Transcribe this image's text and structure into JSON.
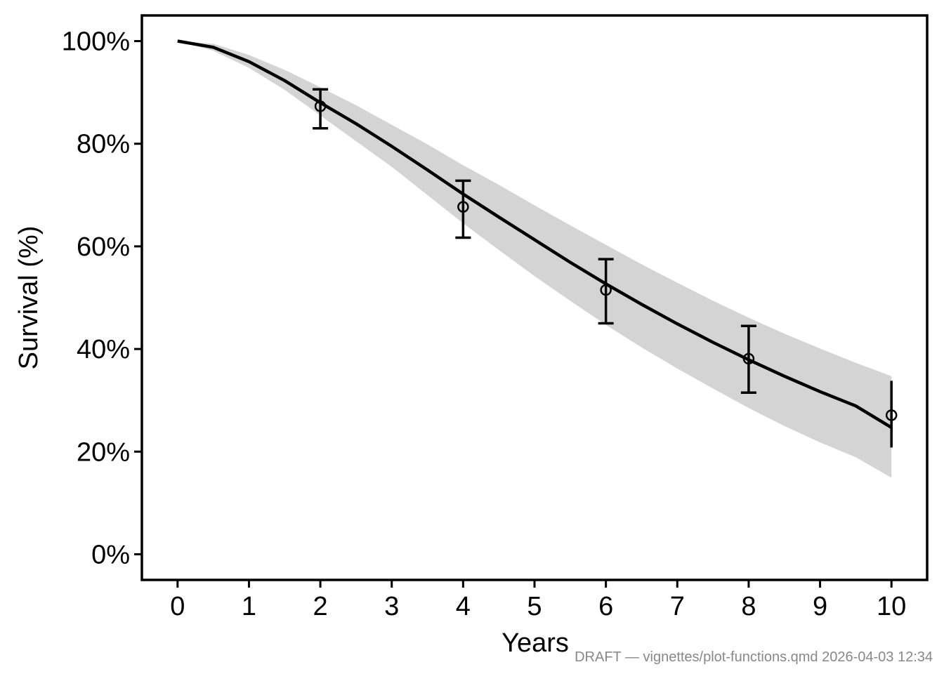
{
  "chart_data": {
    "type": "line",
    "xlabel": "Years",
    "ylabel": "Survival (%)",
    "xlim": [
      -0.5,
      10.5
    ],
    "ylim": [
      -5,
      105
    ],
    "x_ticks": [
      0,
      1,
      2,
      3,
      4,
      5,
      6,
      7,
      8,
      9,
      10
    ],
    "x_tick_labels": [
      "0",
      "1",
      "2",
      "3",
      "4",
      "5",
      "6",
      "7",
      "8",
      "9",
      "10"
    ],
    "y_ticks": [
      0,
      20,
      40,
      60,
      80,
      100
    ],
    "y_tick_labels": [
      "0%",
      "20%",
      "40%",
      "60%",
      "80%",
      "100%"
    ],
    "grid": false,
    "series": [
      {
        "kind": "line",
        "color": "#000000",
        "x": [
          0,
          0.5,
          1,
          1.5,
          2,
          2.5,
          3,
          3.5,
          4,
          4.5,
          5,
          5.5,
          6,
          6.5,
          7,
          7.5,
          8,
          8.5,
          9,
          9.5,
          10
        ],
        "y": [
          100,
          98.8,
          96.0,
          92.3,
          88.0,
          83.9,
          79.5,
          74.9,
          70.2,
          65.7,
          61.3,
          56.9,
          52.7,
          48.7,
          44.9,
          41.3,
          37.9,
          34.7,
          31.7,
          28.9,
          24.7
        ]
      },
      {
        "kind": "ribbon",
        "color": "#d4d4d4",
        "x": [
          0,
          0.5,
          1,
          1.5,
          2,
          2.5,
          3,
          3.5,
          4,
          4.5,
          5,
          5.5,
          6,
          6.5,
          7,
          7.5,
          8,
          8.5,
          9,
          9.5,
          10
        ],
        "lower": [
          100,
          98.1,
          94.8,
          90.5,
          85.5,
          80.5,
          75.5,
          70.0,
          64.5,
          59.3,
          54.2,
          49.4,
          44.7,
          40.3,
          36.2,
          32.3,
          28.5,
          25.0,
          21.8,
          18.9,
          14.9
        ],
        "upper": [
          100,
          99.5,
          97.3,
          94.4,
          91.0,
          87.5,
          83.7,
          79.9,
          75.8,
          72.0,
          68.0,
          64.1,
          60.3,
          56.5,
          52.9,
          49.4,
          46.1,
          43.0,
          40.1,
          37.3,
          34.7
        ]
      },
      {
        "kind": "points_errorbars",
        "color": "#000000",
        "x": [
          2,
          4,
          6,
          8,
          10
        ],
        "y": [
          87.3,
          67.7,
          51.5,
          38.1,
          27.1
        ],
        "lower": [
          83.0,
          61.7,
          45.0,
          31.5,
          20.8
        ],
        "upper": [
          90.6,
          72.8,
          57.5,
          44.5,
          33.8
        ]
      }
    ]
  },
  "watermark": "DRAFT — vignettes/plot-functions.qmd 2026-04-03 12:34"
}
